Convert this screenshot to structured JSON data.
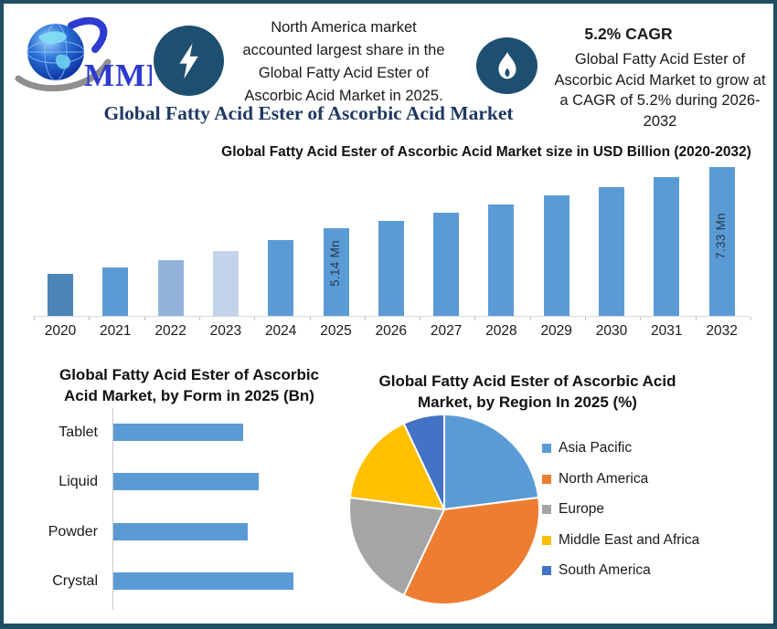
{
  "header": {
    "logo_text": "MMR",
    "highlight_note": "North America market\naccounted largest share in the\nGlobal Fatty Acid Ester of\nAscorbic Acid Market in 2025.",
    "cagr_heading": "5.2% CAGR",
    "cagr_note": "Global Fatty Acid Ester of\nAscorbic Acid Market to grow at\na CAGR of 5.2% during 2026-\n2032",
    "main_title": "Global Fatty Acid Ester of Ascorbic Acid Market"
  },
  "icons": {
    "logo": "globe-logo",
    "badge_left": "lightning-bolt-icon",
    "badge_right": "flame-icon"
  },
  "colors": {
    "frame_border": "#1e4f63",
    "badge_circle": "#1d4f71",
    "title_navy": "#1f3864",
    "logo_blue": "#2e3bd0",
    "bar_blue": "#5b9bd5",
    "axis_gray": "#d9d9d9"
  },
  "chart_data": [
    {
      "id": "market-size-bar",
      "type": "bar",
      "title": "Global Fatty Acid Ester of Ascorbic Acid Market size in USD Billion (2020-2032)",
      "categories": [
        "2020",
        "2021",
        "2022",
        "2023",
        "2024",
        "2025",
        "2026",
        "2027",
        "2028",
        "2029",
        "2030",
        "2031",
        "2032"
      ],
      "values": [
        3.5,
        3.73,
        4.0,
        4.32,
        4.7,
        5.14,
        5.41,
        5.69,
        5.98,
        6.3,
        6.62,
        6.97,
        7.33
      ],
      "value_labels": [
        {
          "category": "2025",
          "text": "5.14 Mn"
        },
        {
          "category": "2032",
          "text": "7.33 Mn"
        }
      ],
      "bar_color_default": "#5b9bd5",
      "bar_color_overrides": {
        "2020": "#4c85b8",
        "2022": "#94b3dc",
        "2023": "#c3d3ec"
      },
      "axis_baseline_value": 2.0,
      "ylim": [
        2.0,
        7.33
      ],
      "grid": false,
      "legend": false
    },
    {
      "id": "form-bar",
      "type": "bar",
      "orientation": "horizontal",
      "title": "Global Fatty Acid Ester of Ascorbic\nAcid Market, by Form in 2025 (Bn)",
      "categories": [
        "Tablet",
        "Liquid",
        "Powder",
        "Crystal"
      ],
      "values": [
        1.13,
        1.27,
        1.17,
        1.57
      ],
      "bar_color": "#5b9bd5",
      "xlim": [
        0,
        1.57
      ],
      "grid": false,
      "legend": false
    },
    {
      "id": "region-pie",
      "type": "pie",
      "title": "Global Fatty Acid Ester of Ascorbic Acid\nMarket, by Region In 2025 (%)",
      "slices": [
        {
          "label": "Asia Pacific",
          "value": 23,
          "color": "#5b9bd5"
        },
        {
          "label": "North America",
          "value": 34,
          "color": "#ed7d31"
        },
        {
          "label": "Europe",
          "value": 20,
          "color": "#a5a5a5"
        },
        {
          "label": "Middle East and Africa",
          "value": 16,
          "color": "#ffc000"
        },
        {
          "label": "South America",
          "value": 7,
          "color": "#4472c4"
        }
      ],
      "start_angle_deg": 0,
      "legend_position": "right"
    }
  ]
}
